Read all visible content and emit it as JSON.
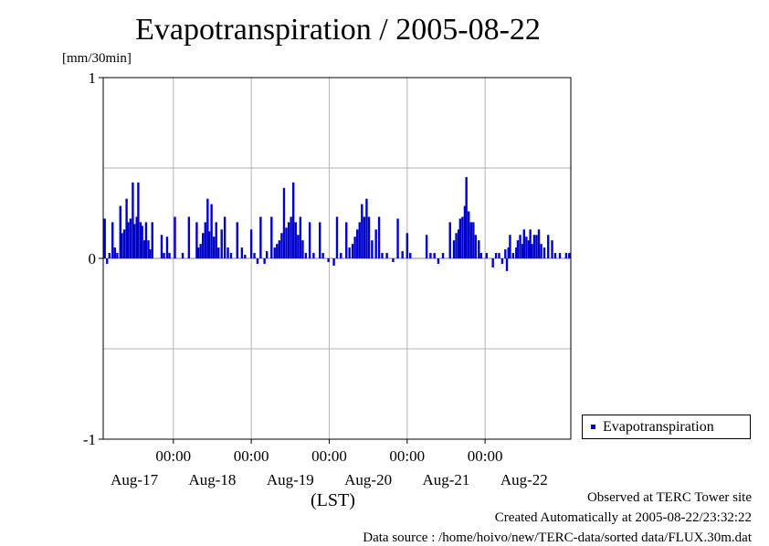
{
  "chart_data": {
    "type": "bar",
    "title": "Evapotranspiration / 2005-08-22",
    "ylabel": "[mm/30min]",
    "xlabel": "(LST)",
    "ylim": [
      -1,
      1
    ],
    "y_ticks": [
      "1",
      "0",
      "-1"
    ],
    "x_range_days": [
      -0.9,
      5.1
    ],
    "x_time_label": "00:00",
    "x_day_labels": [
      "Aug-17",
      "Aug-18",
      "Aug-19",
      "Aug-20",
      "Aug-21",
      "Aug-22"
    ],
    "grid": true,
    "legend_position": "right",
    "series": [
      {
        "name": "Evapotranspiration",
        "color": "#0000cc",
        "points": [
          [
            -0.98,
            0.2
          ],
          [
            -0.95,
            0.03
          ],
          [
            -0.92,
            -0.03
          ],
          [
            -0.88,
            0.22
          ],
          [
            -0.85,
            -0.03
          ],
          [
            -0.82,
            0.03
          ],
          [
            -0.78,
            0.2
          ],
          [
            -0.75,
            0.06
          ],
          [
            -0.72,
            0.03
          ],
          [
            -0.68,
            0.29
          ],
          [
            -0.66,
            0.14
          ],
          [
            -0.63,
            0.16
          ],
          [
            -0.6,
            0.33
          ],
          [
            -0.58,
            0.2
          ],
          [
            -0.55,
            0.22
          ],
          [
            -0.52,
            0.42
          ],
          [
            -0.5,
            0.19
          ],
          [
            -0.47,
            0.23
          ],
          [
            -0.45,
            0.42
          ],
          [
            -0.42,
            0.2
          ],
          [
            -0.4,
            0.18
          ],
          [
            -0.37,
            0.1
          ],
          [
            -0.35,
            0.2
          ],
          [
            -0.32,
            0.1
          ],
          [
            -0.3,
            0.05
          ],
          [
            -0.27,
            0.2
          ],
          [
            -0.15,
            0.13
          ],
          [
            -0.12,
            0.03
          ],
          [
            -0.08,
            0.12
          ],
          [
            -0.05,
            0.03
          ],
          [
            0.02,
            0.23
          ],
          [
            0.12,
            0.03
          ],
          [
            0.2,
            0.23
          ],
          [
            0.3,
            0.2
          ],
          [
            0.32,
            0.06
          ],
          [
            0.35,
            0.08
          ],
          [
            0.38,
            0.14
          ],
          [
            0.41,
            0.2
          ],
          [
            0.44,
            0.33
          ],
          [
            0.46,
            0.15
          ],
          [
            0.49,
            0.3
          ],
          [
            0.52,
            0.12
          ],
          [
            0.55,
            0.2
          ],
          [
            0.58,
            0.06
          ],
          [
            0.62,
            0.16
          ],
          [
            0.66,
            0.23
          ],
          [
            0.7,
            0.06
          ],
          [
            0.74,
            0.03
          ],
          [
            0.82,
            0.2
          ],
          [
            0.88,
            0.06
          ],
          [
            0.92,
            0.02
          ],
          [
            1.0,
            0.16
          ],
          [
            1.04,
            0.03
          ],
          [
            1.08,
            -0.03
          ],
          [
            1.12,
            0.23
          ],
          [
            1.17,
            -0.03
          ],
          [
            1.2,
            0.04
          ],
          [
            1.26,
            0.23
          ],
          [
            1.3,
            0.06
          ],
          [
            1.33,
            0.08
          ],
          [
            1.36,
            0.1
          ],
          [
            1.39,
            0.14
          ],
          [
            1.42,
            0.39
          ],
          [
            1.45,
            0.17
          ],
          [
            1.48,
            0.2
          ],
          [
            1.51,
            0.23
          ],
          [
            1.54,
            0.42
          ],
          [
            1.57,
            0.2
          ],
          [
            1.6,
            0.13
          ],
          [
            1.63,
            0.23
          ],
          [
            1.66,
            0.1
          ],
          [
            1.7,
            0.03
          ],
          [
            1.75,
            0.2
          ],
          [
            1.8,
            0.03
          ],
          [
            1.88,
            0.2
          ],
          [
            1.92,
            0.03
          ],
          [
            1.99,
            -0.02
          ],
          [
            2.06,
            -0.04
          ],
          [
            2.1,
            0.23
          ],
          [
            2.15,
            0.03
          ],
          [
            2.22,
            0.2
          ],
          [
            2.26,
            0.06
          ],
          [
            2.3,
            0.08
          ],
          [
            2.33,
            0.12
          ],
          [
            2.36,
            0.16
          ],
          [
            2.39,
            0.2
          ],
          [
            2.42,
            0.3
          ],
          [
            2.45,
            0.23
          ],
          [
            2.48,
            0.33
          ],
          [
            2.51,
            0.23
          ],
          [
            2.55,
            0.1
          ],
          [
            2.6,
            0.16
          ],
          [
            2.64,
            0.23
          ],
          [
            2.68,
            0.03
          ],
          [
            2.74,
            0.03
          ],
          [
            2.82,
            -0.02
          ],
          [
            2.88,
            0.22
          ],
          [
            2.94,
            0.04
          ],
          [
            3.0,
            0.14
          ],
          [
            3.04,
            0.03
          ],
          [
            3.25,
            0.13
          ],
          [
            3.3,
            0.03
          ],
          [
            3.35,
            0.03
          ],
          [
            3.4,
            -0.03
          ],
          [
            3.46,
            0.03
          ],
          [
            3.55,
            0.2
          ],
          [
            3.6,
            0.1
          ],
          [
            3.63,
            0.14
          ],
          [
            3.66,
            0.16
          ],
          [
            3.68,
            0.22
          ],
          [
            3.71,
            0.23
          ],
          [
            3.74,
            0.29
          ],
          [
            3.76,
            0.45
          ],
          [
            3.79,
            0.26
          ],
          [
            3.82,
            0.2
          ],
          [
            3.85,
            0.2
          ],
          [
            3.88,
            0.13
          ],
          [
            3.92,
            0.1
          ],
          [
            3.95,
            0.03
          ],
          [
            4.02,
            0.03
          ],
          [
            4.1,
            -0.05
          ],
          [
            4.14,
            0.03
          ],
          [
            4.18,
            0.03
          ],
          [
            4.22,
            -0.03
          ],
          [
            4.26,
            0.05
          ],
          [
            4.28,
            -0.07
          ],
          [
            4.3,
            0.06
          ],
          [
            4.32,
            0.13
          ],
          [
            4.36,
            0.03
          ],
          [
            4.4,
            0.06
          ],
          [
            4.42,
            0.1
          ],
          [
            4.45,
            0.13
          ],
          [
            4.48,
            0.08
          ],
          [
            4.5,
            0.16
          ],
          [
            4.53,
            0.12
          ],
          [
            4.56,
            0.1
          ],
          [
            4.58,
            0.16
          ],
          [
            4.6,
            0.08
          ],
          [
            4.63,
            0.13
          ],
          [
            4.66,
            0.13
          ],
          [
            4.69,
            0.16
          ],
          [
            4.72,
            0.08
          ],
          [
            4.76,
            0.06
          ],
          [
            4.81,
            0.13
          ],
          [
            4.86,
            0.1
          ],
          [
            4.9,
            0.03
          ],
          [
            4.96,
            0.03
          ],
          [
            5.04,
            0.03
          ],
          [
            5.08,
            0.03
          ]
        ]
      }
    ]
  },
  "footer": {
    "line1": "Observed at TERC Tower site",
    "line2": "Created Automatically at 2005-08-22/23:32:22",
    "line3": "Data source : /home/hoivo/new/TERC-data/sorted data/FLUX.30m.dat"
  }
}
